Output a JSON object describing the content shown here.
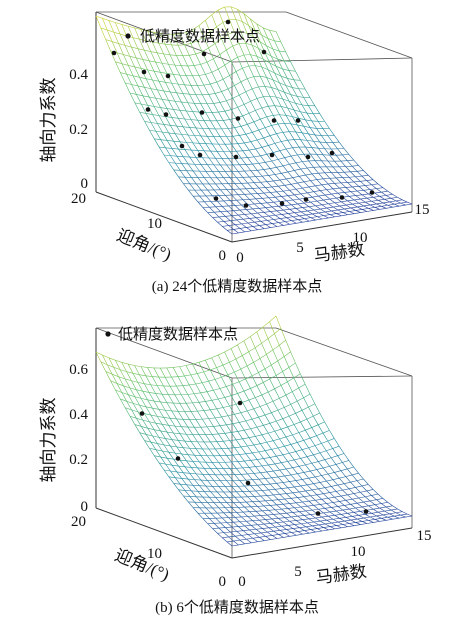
{
  "chart_data": [
    {
      "type": "surface3d",
      "caption": "(a) 24个低精度数据样本点",
      "legend": {
        "label": "低精度数据样本点",
        "placement": "top-left"
      },
      "zlabel": "轴向力系数",
      "xlabel": "马赫数",
      "ylabel": "迎角/(°)",
      "xlim": [
        0,
        15
      ],
      "ylim": [
        0,
        20
      ],
      "zlim": [
        0,
        0.45
      ],
      "xticks": [
        "0",
        "5",
        "10",
        "15"
      ],
      "yticks": [
        "0",
        "10",
        "20"
      ],
      "zticks": [
        "0",
        "0.2",
        "0.4"
      ],
      "grid": true,
      "sample_points": [
        {
          "mach": 1.5,
          "alpha": 20,
          "cz": 0.34
        },
        {
          "mach": 4,
          "alpha": 20,
          "cz": 0.28
        },
        {
          "mach": 6,
          "alpha": 20,
          "cz": 0.26
        },
        {
          "mach": 9,
          "alpha": 20,
          "cz": 0.3
        },
        {
          "mach": 11,
          "alpha": 20,
          "cz": 0.37
        },
        {
          "mach": 14,
          "alpha": 20,
          "cz": 0.28
        },
        {
          "mach": 1.5,
          "alpha": 15,
          "cz": 0.23
        },
        {
          "mach": 3,
          "alpha": 15,
          "cz": 0.21
        },
        {
          "mach": 6,
          "alpha": 15,
          "cz": 0.2
        },
        {
          "mach": 9,
          "alpha": 15,
          "cz": 0.17
        },
        {
          "mach": 12,
          "alpha": 15,
          "cz": 0.15
        },
        {
          "mach": 14,
          "alpha": 15,
          "cz": 0.14
        },
        {
          "mach": 1.5,
          "alpha": 10,
          "cz": 0.17
        },
        {
          "mach": 3,
          "alpha": 10,
          "cz": 0.14
        },
        {
          "mach": 6,
          "alpha": 10,
          "cz": 0.12
        },
        {
          "mach": 9,
          "alpha": 10,
          "cz": 0.11
        },
        {
          "mach": 12,
          "alpha": 10,
          "cz": 0.09
        },
        {
          "mach": 14,
          "alpha": 10,
          "cz": 0.09
        },
        {
          "mach": 1.5,
          "alpha": 5,
          "cz": 0.07
        },
        {
          "mach": 4,
          "alpha": 5,
          "cz": 0.04
        },
        {
          "mach": 7,
          "alpha": 5,
          "cz": 0.03
        },
        {
          "mach": 9,
          "alpha": 5,
          "cz": 0.03
        },
        {
          "mach": 12,
          "alpha": 5,
          "cz": 0.02
        },
        {
          "mach": 14.5,
          "alpha": 5,
          "cz": 0.02
        }
      ]
    },
    {
      "type": "surface3d",
      "caption": "(b) 6个低精度数据样本点",
      "legend": {
        "label": "低精度数据样本点",
        "placement": "top-left"
      },
      "zlabel": "轴向力系数",
      "xlabel": "马赫数",
      "ylabel": "迎角/(°)",
      "xlim": [
        0,
        15
      ],
      "ylim": [
        0,
        20
      ],
      "zlim": [
        0,
        0.6
      ],
      "xticks": [
        "0",
        "5",
        "10",
        "15"
      ],
      "yticks": [
        "0",
        "10",
        "20"
      ],
      "zticks": [
        "0",
        "0.2",
        "0.4",
        "0.6"
      ],
      "grid": true,
      "sample_points": [
        {
          "mach": 1,
          "alpha": 15,
          "cz": 0.35
        },
        {
          "mach": 4,
          "alpha": 15,
          "cz": 0.18
        },
        {
          "mach": 12,
          "alpha": 20,
          "cz": 0.27
        },
        {
          "mach": 7,
          "alpha": 10,
          "cz": 0.12
        },
        {
          "mach": 10,
          "alpha": 5,
          "cz": 0.04
        },
        {
          "mach": 14,
          "alpha": 5,
          "cz": 0.02
        }
      ]
    }
  ]
}
